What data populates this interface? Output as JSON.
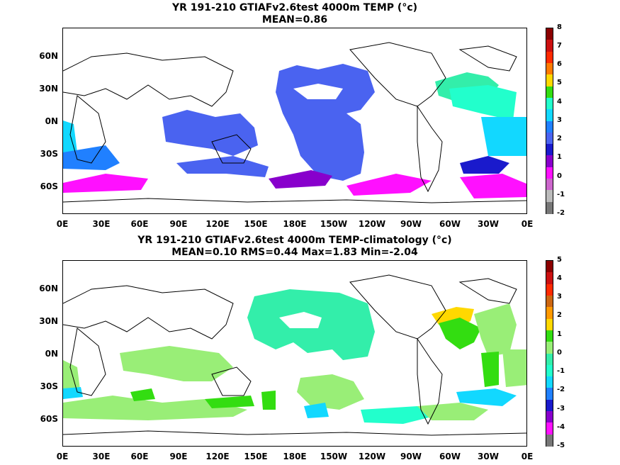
{
  "panels": [
    {
      "title_line1": "YR 191-210 GTIAFv2.6test 4000m TEMP (°c)",
      "title_line2": "MEAN=0.86",
      "y_labels": [
        "60N",
        "30N",
        "0N",
        "30S",
        "60S"
      ],
      "x_labels": [
        "0E",
        "30E",
        "60E",
        "90E",
        "120E",
        "150E",
        "180E",
        "150W",
        "120W",
        "90W",
        "60W",
        "30W",
        "0E"
      ],
      "colorbar_labels": [
        "8",
        "7",
        "6",
        "5",
        "4",
        "3",
        "2",
        "1",
        "0",
        "-1",
        "-2"
      ],
      "colorbar_colors": [
        "#8b0000",
        "#cc1010",
        "#ff2a00",
        "#ff7a00",
        "#ffd800",
        "#33dd11",
        "#22ffcc",
        "#12d8ff",
        "#2080ff",
        "#4a63f0",
        "#1a1acc",
        "#8800cc",
        "#ff10ff",
        "#cc66cc",
        "#bbbbbb",
        "#777777"
      ]
    },
    {
      "title_line1": "YR 191-210 GTIAFv2.6test 4000m TEMP-climatology (°c)",
      "title_line2": "MEAN=0.10   RMS=0.44   Max=1.83   Min=-2.04",
      "y_labels": [
        "60N",
        "30N",
        "0N",
        "30S",
        "60S"
      ],
      "x_labels": [
        "0E",
        "30E",
        "60E",
        "90E",
        "120E",
        "150E",
        "180E",
        "150W",
        "120W",
        "90W",
        "60W",
        "30W",
        "0E"
      ],
      "colorbar_labels": [
        "5",
        "4",
        "3",
        "2",
        "1",
        "0",
        "-1",
        "-2",
        "-3",
        "-4",
        "-5"
      ],
      "colorbar_colors": [
        "#8b0000",
        "#cc1010",
        "#ff2a00",
        "#cc6611",
        "#ff9900",
        "#ffd800",
        "#33dd11",
        "#99ee77",
        "#33eeaa",
        "#22ffcc",
        "#12d8ff",
        "#2080ff",
        "#1a1acc",
        "#8800cc",
        "#ff10ff",
        "#777777"
      ]
    }
  ]
}
